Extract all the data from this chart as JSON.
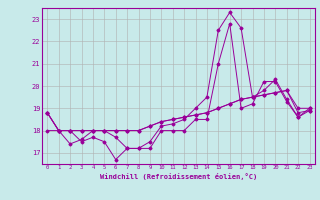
{
  "xlabel": "Windchill (Refroidissement éolien,°C)",
  "ylabel": "",
  "bg_color": "#c8eaea",
  "line_color": "#990099",
  "grid_color": "#b0b0b0",
  "xlim": [
    -0.5,
    23.5
  ],
  "ylim": [
    16.5,
    23.5
  ],
  "yticks": [
    17,
    18,
    19,
    20,
    21,
    22,
    23
  ],
  "xticks": [
    0,
    1,
    2,
    3,
    4,
    5,
    6,
    7,
    8,
    9,
    10,
    11,
    12,
    13,
    14,
    15,
    16,
    17,
    18,
    19,
    20,
    21,
    22,
    23
  ],
  "series": [
    [
      18.8,
      18.0,
      18.0,
      17.5,
      17.7,
      17.5,
      16.7,
      17.2,
      17.2,
      17.2,
      18.0,
      18.0,
      18.0,
      18.5,
      18.5,
      21.0,
      22.8,
      19.0,
      19.2,
      20.2,
      20.2,
      19.3,
      18.6,
      18.9
    ],
    [
      18.8,
      18.0,
      17.4,
      17.6,
      18.0,
      18.0,
      17.7,
      17.2,
      17.2,
      17.5,
      18.2,
      18.3,
      18.5,
      19.0,
      19.5,
      22.5,
      23.3,
      22.6,
      19.5,
      19.8,
      20.3,
      19.4,
      18.6,
      19.0
    ],
    [
      18.0,
      18.0,
      18.0,
      18.0,
      18.0,
      18.0,
      18.0,
      18.0,
      18.0,
      18.2,
      18.4,
      18.5,
      18.6,
      18.7,
      18.8,
      19.0,
      19.2,
      19.4,
      19.5,
      19.6,
      19.7,
      19.8,
      18.8,
      18.9
    ],
    [
      18.8,
      18.0,
      18.0,
      18.0,
      18.0,
      18.0,
      18.0,
      18.0,
      18.0,
      18.2,
      18.4,
      18.5,
      18.6,
      18.7,
      18.8,
      19.0,
      19.2,
      19.4,
      19.5,
      19.6,
      19.7,
      19.8,
      19.0,
      19.0
    ]
  ]
}
